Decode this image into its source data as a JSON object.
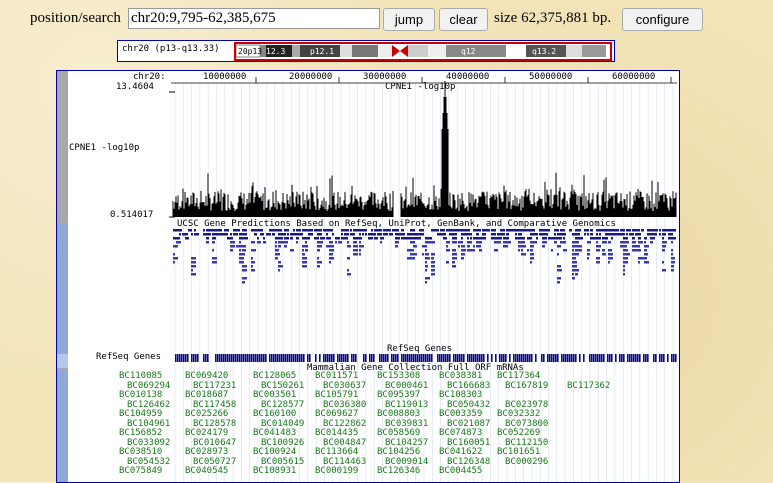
{
  "nav": {
    "position_label": "position/search",
    "position_value": "chr20:9,795-62,385,675",
    "jump_label": "jump",
    "clear_label": "clear",
    "size_text": "size 62,375,881 bp.",
    "configure_label": "configure"
  },
  "ideogram": {
    "label": "chr20 (p13-q13.33)",
    "bands": [
      "20p13",
      "12.3",
      "p12.1",
      "q12",
      "q13.2"
    ]
  },
  "tracks": {
    "ruler_label": "chr20:",
    "ruler_ticks": [
      "10000000",
      "20000000",
      "30000000",
      "40000000",
      "50000000",
      "60000000"
    ],
    "cpne1_title": "CPNE1 -log10p",
    "cpne1_side_label": "CPNE1 -log10p",
    "cpne1_max": "13.4604",
    "cpne1_min": "0.514017",
    "ucsc_title": "UCSC Gene Predictions Based on RefSeq, UniProt, GenBank, and Comparative Genomics",
    "refseq_title": "RefSeq Genes",
    "refseq_side_label": "RefSeq Genes",
    "mgc_title": "Mammalian Gene Collection Full ORF mRNAs"
  },
  "mgc_rows": [
    [
      "BC110085",
      "BC069420",
      "BC128065",
      "BC011571",
      "BC153308",
      "BC038381",
      "BC117364"
    ],
    [
      "BC069294",
      "BC117231",
      "BC150261",
      "BC030637",
      "BC000461",
      "BC166683",
      "BC167819",
      "BC117362"
    ],
    [
      "BC010138",
      "BC018687",
      "BC003501",
      "BC105791",
      "BC095397",
      "BC108303"
    ],
    [
      "BC126462",
      "BC117458",
      "BC128577",
      "BC036380",
      "BC119013",
      "BC050432",
      "BC023978"
    ],
    [
      "BC104959",
      "BC025266",
      "BC160100",
      "BC069627",
      "BC008803",
      "BC003359",
      "BC032332"
    ],
    [
      "BC104961",
      "BC128578",
      "BC014049",
      "BC122862",
      "BC039831",
      "BC021087",
      "BC073800"
    ],
    [
      "BC156852",
      "BC024179",
      "BC041483",
      "BC014435",
      "BC058569",
      "BC074873",
      "BC052269"
    ],
    [
      "BC033092",
      "BC010647",
      "BC100926",
      "BC004847",
      "BC104257",
      "BC160051",
      "BC112150"
    ],
    [
      "BC038510",
      "BC028973",
      "BC100924",
      "BC113664",
      "BC104256",
      "BC041622",
      "BC101651"
    ],
    [
      "BC054532",
      "BC050727",
      "BC005615",
      "BC114463",
      "BC009014",
      "BC126348",
      "BC000296"
    ],
    [
      "BC075849",
      "BC040545",
      "BC108931",
      "BC000199",
      "BC126346",
      "BC004455"
    ]
  ]
}
